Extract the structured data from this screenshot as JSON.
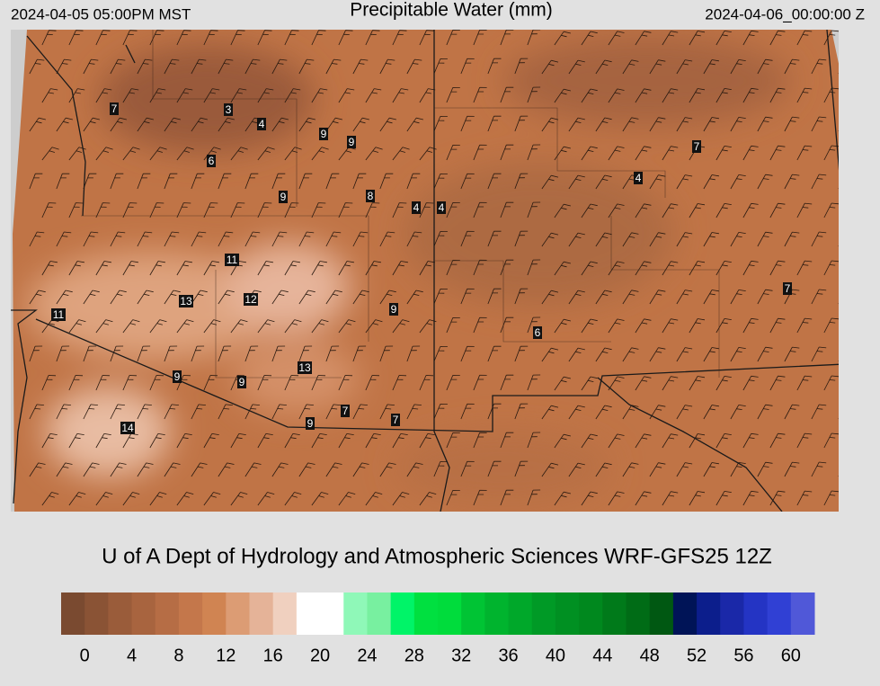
{
  "header": {
    "left": "2024-04-05 05:00PM MST",
    "title": "Precipitable Water (mm)",
    "right": "2024-04-06_00:00:00 Z"
  },
  "map": {
    "contour_labels": [
      7,
      3,
      4,
      9,
      9,
      6,
      9,
      8,
      4,
      4,
      7,
      4,
      11,
      13,
      12,
      11,
      9,
      6,
      7,
      13,
      9,
      9,
      7,
      9,
      7,
      14
    ]
  },
  "credit": "U of A Dept of Hydrology and Atmospheric Sciences WRF-GFS25 12Z",
  "colorbar": {
    "colors": [
      "#7a4a30",
      "#8a5335",
      "#9a5c3a",
      "#a8643f",
      "#b66d45",
      "#c4774b",
      "#d08452",
      "#dc9c74",
      "#e5b398",
      "#f0d0bf",
      "#ffffff",
      "#ffffff",
      "#8ff8b8",
      "#78f0a0",
      "#00f468",
      "#00e040",
      "#00dc3c",
      "#00c434",
      "#00b42e",
      "#00a82a",
      "#009a26",
      "#009022",
      "#00881e",
      "#007a1a",
      "#006c16",
      "#005812",
      "#001457",
      "#0c1e8c",
      "#1a28a8",
      "#2434c4",
      "#3040d4",
      "#5058d8"
    ],
    "labels": [
      0,
      4,
      8,
      12,
      16,
      20,
      24,
      28,
      32,
      36,
      40,
      44,
      48,
      52,
      56,
      60
    ]
  }
}
